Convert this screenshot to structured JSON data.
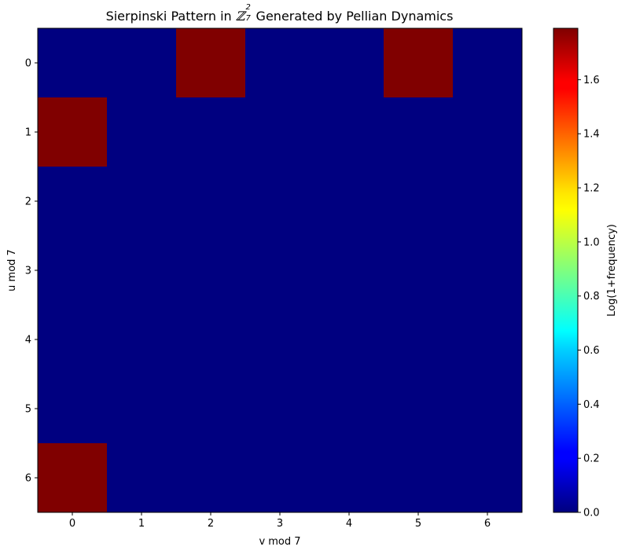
{
  "chart_data": {
    "type": "heatmap",
    "title": {
      "prefix": "Sierpinski Pattern in ",
      "math_base": "ℤ",
      "math_sub": "7",
      "math_sup": "2",
      "suffix": " Generated by Pellian Dynamics"
    },
    "xlabel": "v mod 7",
    "ylabel": "u mod 7",
    "x_ticks": [
      "0",
      "1",
      "2",
      "3",
      "4",
      "5",
      "6"
    ],
    "y_ticks": [
      "0",
      "1",
      "2",
      "3",
      "4",
      "5",
      "6"
    ],
    "values": [
      [
        0,
        0,
        1.79,
        0,
        0,
        1.79,
        0
      ],
      [
        1.79,
        0,
        0,
        0,
        0,
        0,
        0
      ],
      [
        0,
        0,
        0,
        0,
        0,
        0,
        0
      ],
      [
        0,
        0,
        0,
        0,
        0,
        0,
        0
      ],
      [
        0,
        0,
        0,
        0,
        0,
        0,
        0
      ],
      [
        0,
        0,
        0,
        0,
        0,
        0,
        0
      ],
      [
        1.79,
        0,
        0,
        0,
        0,
        0,
        0
      ]
    ],
    "colormap": "jet",
    "colorbar": {
      "label": "Log(1+frequency)",
      "range": [
        0.0,
        1.79
      ],
      "ticks": [
        "0.0",
        "0.2",
        "0.4",
        "0.6",
        "0.8",
        "1.0",
        "1.2",
        "1.4",
        "1.6"
      ]
    },
    "colors": {
      "low": "#00007f",
      "high": "#ff0000"
    }
  }
}
